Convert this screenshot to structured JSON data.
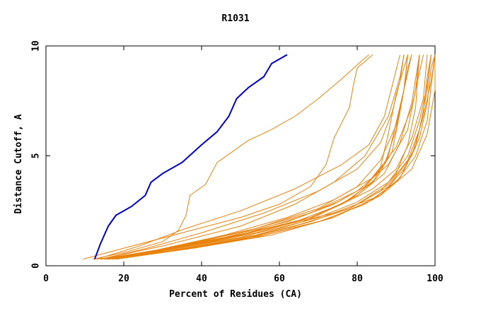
{
  "chart_data": {
    "type": "line",
    "title": "R1031",
    "xlabel": "Percent of Residues (CA)",
    "ylabel": "Distance Cutoff, A",
    "xlim": [
      0,
      100
    ],
    "ylim": [
      0,
      10
    ],
    "xticks": [
      "0",
      "20",
      "40",
      "60",
      "80",
      "100"
    ],
    "yticks": [
      "0",
      "5",
      "10"
    ],
    "highlight_color": "#0000cc",
    "other_color": "#e8820c",
    "series": [
      {
        "name": "highlight",
        "highlight": true,
        "points": [
          [
            12.5,
            0.3
          ],
          [
            14,
            1.0
          ],
          [
            16,
            1.8
          ],
          [
            18,
            2.3
          ],
          [
            22,
            2.7
          ],
          [
            25.5,
            3.2
          ],
          [
            27,
            3.8
          ],
          [
            30,
            4.2
          ],
          [
            35,
            4.7
          ],
          [
            40,
            5.5
          ],
          [
            44,
            6.1
          ],
          [
            47,
            6.8
          ],
          [
            49,
            7.6
          ],
          [
            52,
            8.1
          ],
          [
            56,
            8.6
          ],
          [
            58,
            9.2
          ],
          [
            62,
            9.6
          ]
        ]
      },
      {
        "name": "s1",
        "points": [
          [
            12,
            0.3
          ],
          [
            20,
            0.6
          ],
          [
            30,
            1.1
          ],
          [
            34,
            1.6
          ],
          [
            36,
            2.3
          ],
          [
            37,
            3.2
          ],
          [
            41,
            3.7
          ],
          [
            44,
            4.7
          ],
          [
            52,
            5.7
          ],
          [
            58,
            6.2
          ],
          [
            64,
            6.8
          ],
          [
            70,
            7.6
          ],
          [
            76,
            8.5
          ],
          [
            81,
            9.3
          ],
          [
            83,
            9.6
          ]
        ]
      },
      {
        "name": "s2",
        "points": [
          [
            9.5,
            0.3
          ],
          [
            20,
            0.8
          ],
          [
            35,
            1.5
          ],
          [
            50,
            2.2
          ],
          [
            60,
            2.8
          ],
          [
            68,
            3.6
          ],
          [
            72,
            4.6
          ],
          [
            74,
            5.8
          ],
          [
            76,
            6.5
          ],
          [
            78,
            7.2
          ],
          [
            79,
            8.2
          ],
          [
            80,
            9.0
          ],
          [
            84,
            9.6
          ]
        ]
      },
      {
        "name": "s3",
        "points": [
          [
            14,
            0.3
          ],
          [
            30,
            0.7
          ],
          [
            50,
            1.4
          ],
          [
            65,
            2.2
          ],
          [
            75,
            2.9
          ],
          [
            82,
            3.6
          ],
          [
            86,
            4.5
          ],
          [
            88,
            6.0
          ],
          [
            90,
            7.8
          ],
          [
            92,
            9.0
          ],
          [
            93,
            9.6
          ]
        ]
      },
      {
        "name": "s4",
        "points": [
          [
            15,
            0.3
          ],
          [
            30,
            0.7
          ],
          [
            50,
            1.3
          ],
          [
            66,
            2.0
          ],
          [
            76,
            2.8
          ],
          [
            84,
            3.8
          ],
          [
            88,
            5.0
          ],
          [
            90,
            6.5
          ],
          [
            92,
            8.0
          ],
          [
            93,
            9.6
          ]
        ]
      },
      {
        "name": "s5",
        "points": [
          [
            16,
            0.3
          ],
          [
            32,
            0.8
          ],
          [
            52,
            1.5
          ],
          [
            68,
            2.2
          ],
          [
            78,
            3.0
          ],
          [
            85,
            4.0
          ],
          [
            89,
            5.2
          ],
          [
            91,
            7.0
          ],
          [
            93,
            9.0
          ],
          [
            94,
            9.6
          ]
        ]
      },
      {
        "name": "s6",
        "points": [
          [
            15,
            0.3
          ],
          [
            30,
            0.6
          ],
          [
            50,
            1.2
          ],
          [
            66,
            1.9
          ],
          [
            78,
            2.6
          ],
          [
            86,
            3.4
          ],
          [
            90,
            4.2
          ],
          [
            93,
            5.5
          ],
          [
            95,
            7.2
          ],
          [
            96,
            9.6
          ]
        ]
      },
      {
        "name": "s7",
        "points": [
          [
            14,
            0.3
          ],
          [
            28,
            0.7
          ],
          [
            46,
            1.3
          ],
          [
            62,
            2.0
          ],
          [
            74,
            2.8
          ],
          [
            82,
            3.6
          ],
          [
            87,
            4.6
          ],
          [
            90,
            6.2
          ],
          [
            92,
            8.0
          ],
          [
            94,
            9.6
          ]
        ]
      },
      {
        "name": "s8",
        "points": [
          [
            17,
            0.3
          ],
          [
            34,
            0.8
          ],
          [
            54,
            1.5
          ],
          [
            70,
            2.3
          ],
          [
            80,
            3.2
          ],
          [
            87,
            4.2
          ],
          [
            91,
            5.6
          ],
          [
            94,
            7.4
          ],
          [
            96,
            9.6
          ]
        ]
      },
      {
        "name": "s9",
        "points": [
          [
            15,
            0.3
          ],
          [
            30,
            0.7
          ],
          [
            48,
            1.3
          ],
          [
            64,
            2.0
          ],
          [
            76,
            2.8
          ],
          [
            84,
            3.5
          ],
          [
            90,
            4.4
          ],
          [
            94,
            5.8
          ],
          [
            97,
            7.6
          ],
          [
            98,
            9.6
          ]
        ]
      },
      {
        "name": "s10",
        "points": [
          [
            16,
            0.3
          ],
          [
            34,
            0.8
          ],
          [
            54,
            1.4
          ],
          [
            70,
            2.2
          ],
          [
            80,
            2.9
          ],
          [
            88,
            3.8
          ],
          [
            93,
            5.0
          ],
          [
            96,
            6.6
          ],
          [
            98,
            8.2
          ],
          [
            99,
            9.6
          ]
        ]
      },
      {
        "name": "s11",
        "points": [
          [
            14,
            0.3
          ],
          [
            26,
            0.8
          ],
          [
            40,
            1.5
          ],
          [
            56,
            2.4
          ],
          [
            70,
            3.4
          ],
          [
            80,
            4.4
          ],
          [
            86,
            5.6
          ],
          [
            89,
            7.0
          ],
          [
            91,
            8.4
          ],
          [
            92,
            9.6
          ]
        ]
      },
      {
        "name": "s12",
        "points": [
          [
            13,
            0.3
          ],
          [
            24,
            0.9
          ],
          [
            36,
            1.7
          ],
          [
            50,
            2.5
          ],
          [
            64,
            3.5
          ],
          [
            76,
            4.6
          ],
          [
            83,
            5.5
          ],
          [
            87,
            6.8
          ],
          [
            89,
            8.2
          ],
          [
            91,
            9.6
          ]
        ]
      },
      {
        "name": "s13",
        "points": [
          [
            16,
            0.3
          ],
          [
            32,
            0.7
          ],
          [
            52,
            1.3
          ],
          [
            68,
            2.0
          ],
          [
            80,
            2.8
          ],
          [
            88,
            3.7
          ],
          [
            93,
            4.8
          ],
          [
            96,
            6.2
          ],
          [
            98,
            8.0
          ],
          [
            99,
            9.6
          ]
        ]
      },
      {
        "name": "s14",
        "points": [
          [
            17,
            0.3
          ],
          [
            36,
            0.8
          ],
          [
            56,
            1.4
          ],
          [
            72,
            2.1
          ],
          [
            84,
            3.0
          ],
          [
            91,
            4.0
          ],
          [
            95,
            5.4
          ],
          [
            97,
            7.0
          ],
          [
            98,
            8.6
          ],
          [
            99,
            9.6
          ]
        ]
      },
      {
        "name": "s15",
        "points": [
          [
            15,
            0.3
          ],
          [
            30,
            0.6
          ],
          [
            48,
            1.1
          ],
          [
            64,
            1.8
          ],
          [
            78,
            2.6
          ],
          [
            88,
            3.6
          ],
          [
            94,
            5.0
          ],
          [
            97,
            6.8
          ],
          [
            99,
            8.4
          ],
          [
            100,
            9.6
          ]
        ]
      },
      {
        "name": "s16",
        "points": [
          [
            18,
            0.3
          ],
          [
            38,
            0.8
          ],
          [
            58,
            1.4
          ],
          [
            74,
            2.2
          ],
          [
            86,
            3.2
          ],
          [
            92,
            4.4
          ],
          [
            96,
            5.8
          ],
          [
            98,
            7.4
          ],
          [
            99,
            9.0
          ],
          [
            100,
            9.6
          ]
        ]
      },
      {
        "name": "s17",
        "points": [
          [
            16,
            0.3
          ],
          [
            34,
            0.9
          ],
          [
            54,
            1.7
          ],
          [
            70,
            2.6
          ],
          [
            80,
            3.6
          ],
          [
            86,
            4.8
          ],
          [
            90,
            6.4
          ],
          [
            92,
            8.0
          ],
          [
            93,
            9.6
          ]
        ]
      },
      {
        "name": "s18",
        "points": [
          [
            14,
            0.3
          ],
          [
            30,
            0.9
          ],
          [
            50,
            1.8
          ],
          [
            64,
            2.8
          ],
          [
            74,
            3.8
          ],
          [
            82,
            5.0
          ],
          [
            88,
            6.8
          ],
          [
            91,
            8.6
          ],
          [
            92,
            9.6
          ]
        ]
      },
      {
        "name": "s19",
        "points": [
          [
            15,
            0.3
          ],
          [
            32,
            0.8
          ],
          [
            52,
            1.6
          ],
          [
            68,
            2.4
          ],
          [
            80,
            3.4
          ],
          [
            88,
            4.6
          ],
          [
            93,
            6.2
          ],
          [
            95,
            8.0
          ],
          [
            96,
            9.6
          ]
        ]
      },
      {
        "name": "s20",
        "points": [
          [
            14,
            0.3
          ],
          [
            28,
            0.7
          ],
          [
            46,
            1.4
          ],
          [
            62,
            2.2
          ],
          [
            74,
            3.0
          ],
          [
            84,
            4.0
          ],
          [
            90,
            5.4
          ],
          [
            94,
            7.2
          ],
          [
            96,
            8.8
          ],
          [
            97,
            9.6
          ]
        ]
      },
      {
        "name": "s21",
        "points": [
          [
            13,
            0.3
          ],
          [
            26,
            0.6
          ],
          [
            44,
            1.2
          ],
          [
            60,
            1.8
          ],
          [
            74,
            2.4
          ],
          [
            86,
            3.2
          ],
          [
            94,
            4.4
          ],
          [
            98,
            6.0
          ],
          [
            100,
            8.0
          ],
          [
            100,
            9.6
          ]
        ]
      },
      {
        "name": "s22",
        "points": [
          [
            16,
            0.3
          ],
          [
            34,
            0.7
          ],
          [
            54,
            1.3
          ],
          [
            70,
            2.0
          ],
          [
            82,
            2.8
          ],
          [
            90,
            3.8
          ],
          [
            95,
            5.0
          ],
          [
            98,
            6.6
          ],
          [
            99,
            8.2
          ],
          [
            100,
            9.6
          ]
        ]
      }
    ]
  }
}
